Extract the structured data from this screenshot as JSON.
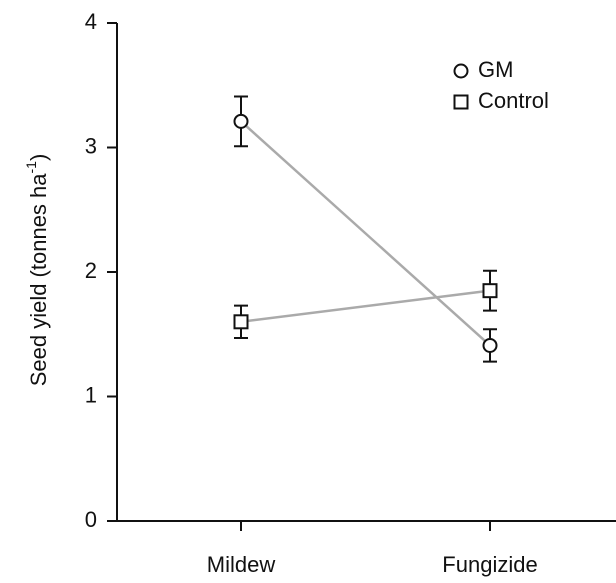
{
  "chart_data": {
    "type": "line",
    "ylabel": [
      "Seed yield (tonnes ha",
      "-1",
      ")"
    ],
    "categories": [
      "Mildew",
      "Fungizide"
    ],
    "series": [
      {
        "name": "GM",
        "marker": "circle",
        "color": "#aaaaaa",
        "values": [
          3.21,
          1.41
        ],
        "errors": [
          0.2,
          0.13
        ]
      },
      {
        "name": "Control",
        "marker": "square",
        "color": "#aaaaaa",
        "values": [
          1.6,
          1.85
        ],
        "errors": [
          0.13,
          0.16
        ]
      }
    ],
    "ylim": [
      0,
      4
    ],
    "yticks": [
      0,
      1,
      2,
      3,
      4
    ],
    "grid": false
  }
}
